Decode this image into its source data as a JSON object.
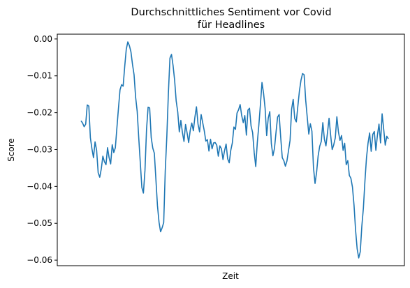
{
  "chart_data": {
    "type": "line",
    "title": "Durchschnittliches Sentiment vor Covid",
    "subtitle": "für Headlines",
    "xlabel": "Zeit",
    "ylabel": "Score",
    "ylim": [
      -0.0615,
      0.0013
    ],
    "yticks": [
      0.0,
      -0.01,
      -0.02,
      -0.03,
      -0.04,
      -0.05,
      -0.06
    ],
    "ytick_labels": [
      "0.00",
      "−0.01",
      "−0.02",
      "−0.03",
      "−0.04",
      "−0.05",
      "−0.06"
    ],
    "xticks_visible": false,
    "grid": false,
    "legend": "none",
    "series": [
      {
        "color": "#1f77b4",
        "values": [
          -0.0222,
          -0.0228,
          -0.0238,
          -0.0231,
          -0.0179,
          -0.0182,
          -0.0268,
          -0.0298,
          -0.0322,
          -0.0279,
          -0.0302,
          -0.0363,
          -0.0375,
          -0.0352,
          -0.0318,
          -0.0333,
          -0.0341,
          -0.0295,
          -0.0322,
          -0.0339,
          -0.0287,
          -0.0308,
          -0.0295,
          -0.0241,
          -0.0188,
          -0.0138,
          -0.0124,
          -0.0128,
          -0.0075,
          -0.0028,
          -0.0008,
          -0.0018,
          -0.0035,
          -0.0069,
          -0.0097,
          -0.0158,
          -0.0196,
          -0.0268,
          -0.0336,
          -0.0403,
          -0.0418,
          -0.0356,
          -0.0245,
          -0.0185,
          -0.0187,
          -0.0268,
          -0.0296,
          -0.031,
          -0.0381,
          -0.0452,
          -0.0497,
          -0.0523,
          -0.0512,
          -0.0498,
          -0.0357,
          -0.0265,
          -0.0147,
          -0.0052,
          -0.0042,
          -0.0072,
          -0.0112,
          -0.0168,
          -0.0198,
          -0.0252,
          -0.0221,
          -0.0254,
          -0.0278,
          -0.0232,
          -0.0255,
          -0.0281,
          -0.0248,
          -0.0228,
          -0.0249,
          -0.0212,
          -0.0184,
          -0.0231,
          -0.0252,
          -0.0205,
          -0.0227,
          -0.0249,
          -0.0277,
          -0.0273,
          -0.0304,
          -0.0272,
          -0.0298,
          -0.0282,
          -0.0281,
          -0.0288,
          -0.0318,
          -0.029,
          -0.0298,
          -0.0327,
          -0.0303,
          -0.0285,
          -0.0325,
          -0.0336,
          -0.0302,
          -0.0282,
          -0.0239,
          -0.0245,
          -0.0201,
          -0.0192,
          -0.0178,
          -0.0208,
          -0.0227,
          -0.0208,
          -0.0261,
          -0.0193,
          -0.0188,
          -0.0236,
          -0.0254,
          -0.0308,
          -0.0346,
          -0.0281,
          -0.0233,
          -0.0178,
          -0.0118,
          -0.0147,
          -0.0188,
          -0.0262,
          -0.0215,
          -0.0197,
          -0.0284,
          -0.0317,
          -0.0297,
          -0.0253,
          -0.0212,
          -0.0205,
          -0.0267,
          -0.0322,
          -0.033,
          -0.0345,
          -0.0331,
          -0.0303,
          -0.0275,
          -0.019,
          -0.0164,
          -0.0216,
          -0.0225,
          -0.0182,
          -0.0141,
          -0.0112,
          -0.0094,
          -0.0097,
          -0.0165,
          -0.0212,
          -0.0258,
          -0.023,
          -0.025,
          -0.0348,
          -0.0392,
          -0.0362,
          -0.0317,
          -0.0291,
          -0.0278,
          -0.0227,
          -0.0272,
          -0.029,
          -0.0254,
          -0.0215,
          -0.0261,
          -0.03,
          -0.0287,
          -0.0268,
          -0.0211,
          -0.0252,
          -0.0275,
          -0.0262,
          -0.0302,
          -0.0283,
          -0.0341,
          -0.033,
          -0.037,
          -0.0378,
          -0.0402,
          -0.0451,
          -0.0519,
          -0.0569,
          -0.0594,
          -0.0577,
          -0.0508,
          -0.0459,
          -0.0385,
          -0.0322,
          -0.0282,
          -0.0255,
          -0.0305,
          -0.0259,
          -0.0251,
          -0.0302,
          -0.0261,
          -0.0231,
          -0.0282,
          -0.0203,
          -0.0244,
          -0.0288,
          -0.0264,
          -0.0271
        ]
      }
    ]
  }
}
